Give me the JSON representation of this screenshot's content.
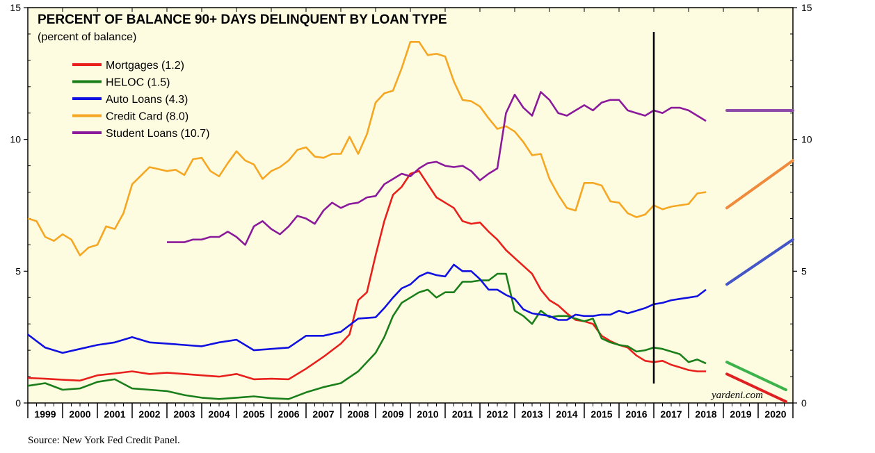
{
  "chart_data": {
    "type": "line",
    "title": "PERCENT OF BALANCE 90+ DAYS DELINQUENT BY LOAN TYPE",
    "subtitle": "(percent of balance)",
    "source": "Source: New York Fed Credit Panel.",
    "watermark": "yardeni.com",
    "ylim": [
      0,
      15
    ],
    "yticks": [
      0,
      5,
      10,
      15
    ],
    "xlim": [
      1999.0,
      2021.0
    ],
    "x_tick_labels": [
      "1999",
      "2000",
      "2001",
      "2002",
      "2003",
      "2004",
      "2005",
      "2006",
      "2007",
      "2008",
      "2009",
      "2010",
      "2011",
      "2012",
      "2013",
      "2014",
      "2015",
      "2016",
      "2017",
      "2018",
      "2019",
      "2020"
    ],
    "background": "#fdfce0",
    "vertical_marker_x": 2017.0,
    "legend_placement": "top-left",
    "series": [
      {
        "name": "Mortgages (1.2)",
        "color": "#e8201c",
        "x": [
          1999.0,
          1999.5,
          2000.0,
          2000.5,
          2001.0,
          2001.5,
          2002.0,
          2002.5,
          2003.0,
          2003.5,
          2004.0,
          2004.5,
          2005.0,
          2005.5,
          2006.0,
          2006.5,
          2007.0,
          2007.5,
          2008.0,
          2008.25,
          2008.5,
          2008.75,
          2009.0,
          2009.25,
          2009.5,
          2009.75,
          2010.0,
          2010.25,
          2010.5,
          2010.75,
          2011.0,
          2011.25,
          2011.5,
          2011.75,
          2012.0,
          2012.25,
          2012.5,
          2012.75,
          2013.0,
          2013.25,
          2013.5,
          2013.75,
          2014.0,
          2014.25,
          2014.5,
          2014.75,
          2015.0,
          2015.25,
          2015.5,
          2015.75,
          2016.0,
          2016.25,
          2016.5,
          2016.75,
          2017.0,
          2017.25,
          2017.5,
          2017.75,
          2018.0,
          2018.25,
          2018.5
        ],
        "values": [
          0.95,
          0.92,
          0.88,
          0.85,
          1.05,
          1.12,
          1.2,
          1.1,
          1.15,
          1.1,
          1.05,
          1.0,
          1.1,
          0.9,
          0.92,
          0.9,
          1.3,
          1.75,
          2.25,
          2.6,
          3.9,
          4.2,
          5.6,
          6.9,
          7.9,
          8.2,
          8.7,
          8.8,
          8.3,
          7.8,
          7.6,
          7.4,
          6.9,
          6.8,
          6.85,
          6.5,
          6.2,
          5.8,
          5.5,
          5.2,
          4.9,
          4.3,
          3.9,
          3.7,
          3.4,
          3.15,
          3.1,
          3.0,
          2.55,
          2.35,
          2.2,
          2.1,
          1.8,
          1.6,
          1.55,
          1.6,
          1.45,
          1.35,
          1.25,
          1.2,
          1.2
        ]
      },
      {
        "name": "HELOC (1.5)",
        "color": "#1a7f1a",
        "x": [
          1999.0,
          1999.5,
          2000.0,
          2000.5,
          2001.0,
          2001.5,
          2002.0,
          2002.5,
          2003.0,
          2003.5,
          2004.0,
          2004.5,
          2005.0,
          2005.5,
          2006.0,
          2006.5,
          2007.0,
          2007.5,
          2008.0,
          2008.5,
          2009.0,
          2009.25,
          2009.5,
          2009.75,
          2010.0,
          2010.25,
          2010.5,
          2010.75,
          2011.0,
          2011.25,
          2011.5,
          2011.75,
          2012.0,
          2012.25,
          2012.5,
          2012.75,
          2013.0,
          2013.25,
          2013.5,
          2013.75,
          2014.0,
          2014.25,
          2014.5,
          2014.75,
          2015.0,
          2015.25,
          2015.5,
          2015.75,
          2016.0,
          2016.25,
          2016.5,
          2016.75,
          2017.0,
          2017.25,
          2017.5,
          2017.75,
          2018.0,
          2018.25,
          2018.5
        ],
        "values": [
          0.65,
          0.75,
          0.5,
          0.55,
          0.8,
          0.9,
          0.55,
          0.5,
          0.45,
          0.3,
          0.2,
          0.15,
          0.2,
          0.25,
          0.18,
          0.15,
          0.4,
          0.6,
          0.75,
          1.2,
          1.9,
          2.5,
          3.3,
          3.8,
          4.0,
          4.2,
          4.3,
          4.0,
          4.2,
          4.2,
          4.6,
          4.6,
          4.65,
          4.65,
          4.9,
          4.9,
          3.5,
          3.3,
          3.0,
          3.5,
          3.25,
          3.3,
          3.3,
          3.2,
          3.1,
          3.2,
          2.45,
          2.3,
          2.2,
          2.15,
          1.95,
          2.0,
          2.1,
          2.05,
          1.95,
          1.85,
          1.55,
          1.65,
          1.5
        ]
      },
      {
        "name": "Auto Loans (4.3)",
        "color": "#1010e0",
        "x": [
          1999.0,
          1999.5,
          2000.0,
          2000.5,
          2001.0,
          2001.5,
          2002.0,
          2002.5,
          2003.0,
          2003.5,
          2004.0,
          2004.5,
          2005.0,
          2005.5,
          2006.0,
          2006.5,
          2007.0,
          2007.5,
          2008.0,
          2008.5,
          2009.0,
          2009.25,
          2009.5,
          2009.75,
          2010.0,
          2010.25,
          2010.5,
          2010.75,
          2011.0,
          2011.25,
          2011.5,
          2011.75,
          2012.0,
          2012.25,
          2012.5,
          2012.75,
          2013.0,
          2013.25,
          2013.5,
          2013.75,
          2014.0,
          2014.25,
          2014.5,
          2014.75,
          2015.0,
          2015.25,
          2015.5,
          2015.75,
          2016.0,
          2016.25,
          2016.5,
          2016.75,
          2017.0,
          2017.25,
          2017.5,
          2017.75,
          2018.0,
          2018.25,
          2018.5
        ],
        "values": [
          2.6,
          2.1,
          1.9,
          2.05,
          2.2,
          2.3,
          2.5,
          2.3,
          2.25,
          2.2,
          2.15,
          2.3,
          2.4,
          2.0,
          2.05,
          2.1,
          2.55,
          2.55,
          2.7,
          3.2,
          3.25,
          3.6,
          4.0,
          4.35,
          4.5,
          4.8,
          4.95,
          4.85,
          4.8,
          5.25,
          5.0,
          5.0,
          4.7,
          4.3,
          4.3,
          4.1,
          3.95,
          3.55,
          3.4,
          3.35,
          3.3,
          3.15,
          3.15,
          3.35,
          3.3,
          3.3,
          3.35,
          3.35,
          3.5,
          3.4,
          3.5,
          3.6,
          3.75,
          3.8,
          3.9,
          3.95,
          4.0,
          4.05,
          4.3
        ]
      },
      {
        "name": "Credit Card (8.0)",
        "color": "#f5a623",
        "x": [
          1999.0,
          1999.25,
          1999.5,
          1999.75,
          2000.0,
          2000.25,
          2000.5,
          2000.75,
          2001.0,
          2001.25,
          2001.5,
          2001.75,
          2002.0,
          2002.5,
          2003.0,
          2003.25,
          2003.5,
          2003.75,
          2004.0,
          2004.25,
          2004.5,
          2004.75,
          2005.0,
          2005.25,
          2005.5,
          2005.75,
          2006.0,
          2006.25,
          2006.5,
          2006.75,
          2007.0,
          2007.25,
          2007.5,
          2007.75,
          2008.0,
          2008.25,
          2008.5,
          2008.75,
          2009.0,
          2009.25,
          2009.5,
          2009.75,
          2010.0,
          2010.25,
          2010.5,
          2010.75,
          2011.0,
          2011.25,
          2011.5,
          2011.75,
          2012.0,
          2012.25,
          2012.5,
          2012.75,
          2013.0,
          2013.25,
          2013.5,
          2013.75,
          2014.0,
          2014.25,
          2014.5,
          2014.75,
          2015.0,
          2015.25,
          2015.5,
          2015.75,
          2016.0,
          2016.25,
          2016.5,
          2016.75,
          2017.0,
          2017.25,
          2017.5,
          2017.75,
          2018.0,
          2018.25,
          2018.5
        ],
        "values": [
          7.0,
          6.9,
          6.3,
          6.15,
          6.4,
          6.2,
          5.6,
          5.9,
          6.0,
          6.7,
          6.6,
          7.2,
          8.3,
          8.95,
          8.8,
          8.85,
          8.65,
          9.25,
          9.3,
          8.8,
          8.6,
          9.1,
          9.55,
          9.2,
          9.05,
          8.5,
          8.8,
          8.95,
          9.2,
          9.6,
          9.7,
          9.35,
          9.3,
          9.45,
          9.45,
          10.1,
          9.45,
          10.2,
          11.4,
          11.75,
          11.85,
          12.7,
          13.7,
          13.7,
          13.2,
          13.25,
          13.15,
          12.2,
          11.5,
          11.45,
          11.25,
          10.8,
          10.4,
          10.5,
          10.3,
          9.9,
          9.4,
          9.45,
          8.5,
          7.9,
          7.4,
          7.3,
          8.35,
          8.35,
          8.25,
          7.65,
          7.6,
          7.2,
          7.05,
          7.15,
          7.5,
          7.35,
          7.45,
          7.5,
          7.55,
          7.95,
          8.0
        ]
      },
      {
        "name": "Student Loans (10.7)",
        "color": "#8b1a9b",
        "x": [
          2003.0,
          2003.25,
          2003.5,
          2003.75,
          2004.0,
          2004.25,
          2004.5,
          2004.75,
          2005.0,
          2005.25,
          2005.5,
          2005.75,
          2006.0,
          2006.25,
          2006.5,
          2006.75,
          2007.0,
          2007.25,
          2007.5,
          2007.75,
          2008.0,
          2008.25,
          2008.5,
          2008.75,
          2009.0,
          2009.25,
          2009.5,
          2009.75,
          2010.0,
          2010.25,
          2010.5,
          2010.75,
          2011.0,
          2011.25,
          2011.5,
          2011.75,
          2012.0,
          2012.25,
          2012.5,
          2012.75,
          2013.0,
          2013.25,
          2013.5,
          2013.75,
          2014.0,
          2014.25,
          2014.5,
          2014.75,
          2015.0,
          2015.25,
          2015.5,
          2015.75,
          2016.0,
          2016.25,
          2016.5,
          2016.75,
          2017.0,
          2017.25,
          2017.5,
          2017.75,
          2018.0,
          2018.25,
          2018.5
        ],
        "values": [
          6.1,
          6.1,
          6.1,
          6.2,
          6.2,
          6.3,
          6.3,
          6.5,
          6.3,
          6.0,
          6.7,
          6.9,
          6.6,
          6.4,
          6.7,
          7.1,
          7.0,
          6.8,
          7.3,
          7.6,
          7.4,
          7.55,
          7.6,
          7.8,
          7.85,
          8.3,
          8.5,
          8.7,
          8.6,
          8.9,
          9.1,
          9.15,
          9.0,
          8.95,
          9.0,
          8.8,
          8.45,
          8.7,
          8.9,
          11.0,
          11.7,
          11.2,
          10.9,
          11.8,
          11.5,
          11.0,
          10.9,
          11.1,
          11.3,
          11.1,
          11.4,
          11.5,
          11.5,
          11.1,
          11.0,
          10.9,
          11.1,
          11.0,
          11.2,
          11.2,
          11.1,
          10.9,
          10.7
        ]
      }
    ],
    "projections": [
      {
        "color": "#8e4aa8",
        "x": [
          2019.1,
          2021.0
        ],
        "values": [
          11.1,
          11.1
        ]
      },
      {
        "color": "#f08a3c",
        "x": [
          2019.1,
          2021.0
        ],
        "values": [
          7.4,
          9.2
        ]
      },
      {
        "color": "#4455c8",
        "x": [
          2019.1,
          2021.0
        ],
        "values": [
          4.5,
          6.2
        ]
      },
      {
        "color": "#3cb34a",
        "x": [
          2019.1,
          2020.8
        ],
        "values": [
          1.55,
          0.5
        ]
      },
      {
        "color": "#e02020",
        "x": [
          2019.1,
          2020.8
        ],
        "values": [
          1.1,
          0.05
        ]
      }
    ]
  }
}
